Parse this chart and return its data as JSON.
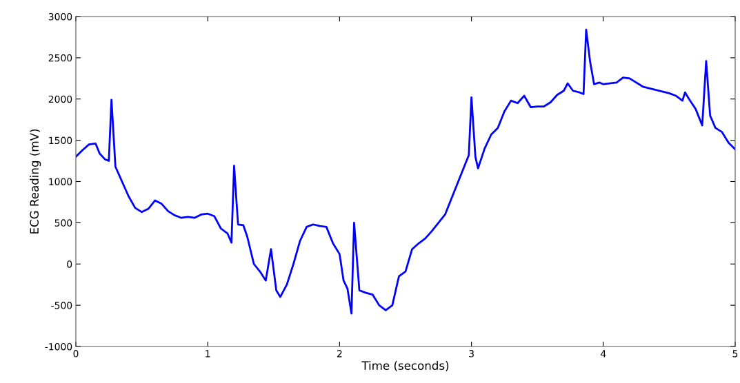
{
  "chart_data": {
    "type": "line",
    "xlabel": "Time (seconds)",
    "ylabel": "ECG Reading (mV)",
    "xlim": [
      0,
      5
    ],
    "xticks": [
      0,
      1,
      2,
      3,
      4,
      5
    ],
    "ylim": [
      -1000,
      3000
    ],
    "yticks": [
      -1000,
      -500,
      0,
      500,
      1000,
      1500,
      2000,
      2500,
      3000
    ],
    "grid": false,
    "marker": "none",
    "line_style": "solid",
    "x": [
      0,
      0.05,
      0.1,
      0.15,
      0.18,
      0.22,
      0.25,
      0.27,
      0.3,
      0.35,
      0.4,
      0.45,
      0.5,
      0.55,
      0.6,
      0.65,
      0.7,
      0.75,
      0.8,
      0.85,
      0.9,
      0.95,
      1.0,
      1.05,
      1.1,
      1.15,
      1.18,
      1.2,
      1.23,
      1.27,
      1.3,
      1.35,
      1.4,
      1.44,
      1.48,
      1.52,
      1.55,
      1.6,
      1.65,
      1.7,
      1.75,
      1.8,
      1.85,
      1.9,
      1.95,
      2.0,
      2.03,
      2.06,
      2.09,
      2.11,
      2.15,
      2.2,
      2.25,
      2.3,
      2.35,
      2.4,
      2.45,
      2.5,
      2.55,
      2.6,
      2.65,
      2.7,
      2.8,
      2.85,
      2.9,
      2.95,
      2.98,
      3.0,
      3.03,
      3.05,
      3.1,
      3.15,
      3.2,
      3.25,
      3.3,
      3.35,
      3.4,
      3.45,
      3.5,
      3.55,
      3.6,
      3.65,
      3.7,
      3.73,
      3.77,
      3.82,
      3.85,
      3.87,
      3.9,
      3.93,
      3.97,
      4.0,
      4.1,
      4.15,
      4.2,
      4.3,
      4.4,
      4.5,
      4.55,
      4.6,
      4.62,
      4.65,
      4.7,
      4.75,
      4.78,
      4.81,
      4.85,
      4.9,
      4.95,
      5.0
    ],
    "series": [
      {
        "color": "#0000ff",
        "values": [
          1300,
          1380,
          1450,
          1460,
          1340,
          1270,
          1250,
          1990,
          1180,
          1000,
          820,
          680,
          630,
          670,
          770,
          730,
          640,
          590,
          560,
          570,
          560,
          600,
          610,
          580,
          430,
          370,
          260,
          1190,
          480,
          470,
          330,
          0,
          -100,
          -200,
          180,
          -320,
          -400,
          -250,
          0,
          280,
          450,
          480,
          460,
          450,
          250,
          120,
          -200,
          -300,
          -600,
          500,
          -320,
          -350,
          -370,
          -500,
          -560,
          -500,
          -150,
          -90,
          180,
          250,
          310,
          400,
          600,
          800,
          1000,
          1200,
          1320,
          2020,
          1300,
          1160,
          1400,
          1570,
          1650,
          1850,
          1980,
          1950,
          2040,
          1900,
          1910,
          1910,
          1960,
          2050,
          2100,
          2190,
          2100,
          2080,
          2060,
          2840,
          2450,
          2180,
          2200,
          2180,
          2200,
          2260,
          2250,
          2150,
          2110,
          2070,
          2040,
          1980,
          2080,
          2000,
          1880,
          1680,
          2460,
          1800,
          1650,
          1600,
          1470,
          1390
        ]
      }
    ]
  }
}
